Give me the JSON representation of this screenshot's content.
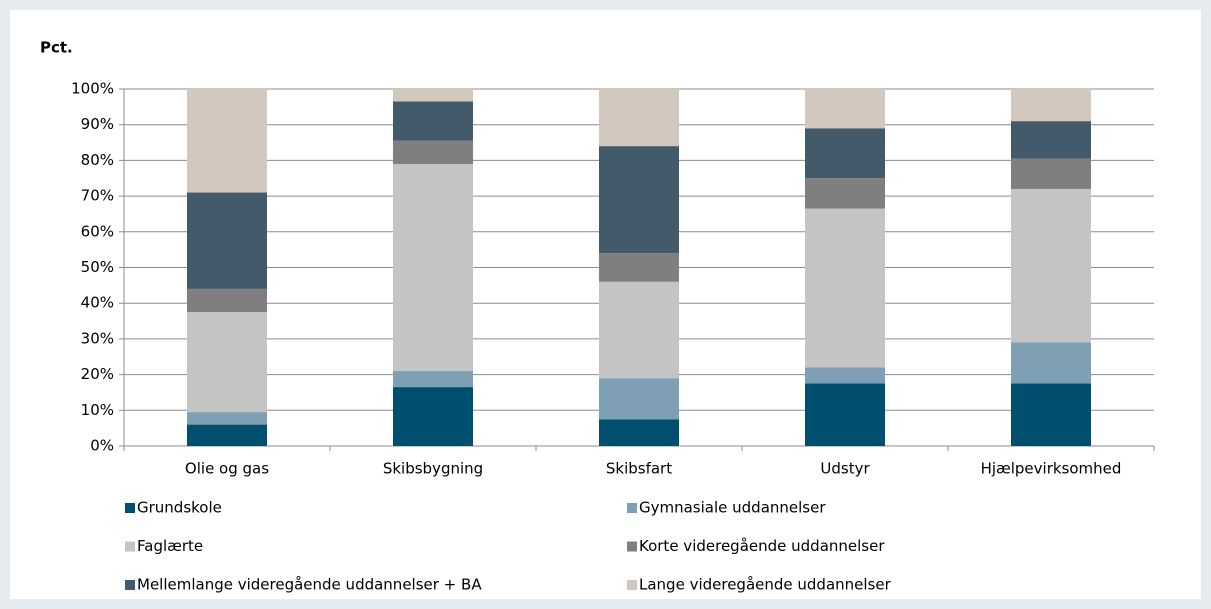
{
  "chart_data": {
    "type": "stacked_bar",
    "ylabel": "Pct.",
    "categories": [
      "Olie og gas",
      "Skibsbygning",
      "Skibsfart",
      "Udstyr",
      "Hjælpevirksomhed"
    ],
    "series": [
      {
        "name": "Grundskole",
        "color": "#004f6e",
        "values": [
          6,
          16.5,
          7.5,
          17.5,
          17.5
        ]
      },
      {
        "name": "Gymnasiale uddannelser",
        "color": "#7f9fb5",
        "values": [
          3.5,
          4.5,
          11.5,
          4.5,
          11.5
        ]
      },
      {
        "name": "Faglærte",
        "color": "#c4c4c4",
        "values": [
          28,
          58,
          27,
          44.5,
          43
        ]
      },
      {
        "name": "Korte videregående uddannelser",
        "color": "#7f7f7f",
        "values": [
          6.5,
          6.5,
          8,
          8.5,
          8.5
        ]
      },
      {
        "name": "Mellemlange videregående uddannelser + BA",
        "color": "#435a6b",
        "values": [
          27,
          11,
          30,
          14,
          10.5
        ]
      },
      {
        "name": "Lange videregående uddannelser",
        "color": "#d3c8bd",
        "values": [
          29,
          3.5,
          16,
          11,
          9
        ]
      }
    ],
    "ylim": [
      0,
      100
    ],
    "yticks": [
      {
        "value": 0,
        "label": "0%"
      },
      {
        "value": 10,
        "label": "10%"
      },
      {
        "value": 20,
        "label": "20%"
      },
      {
        "value": 30,
        "label": "30%"
      },
      {
        "value": 40,
        "label": "40%"
      },
      {
        "value": 50,
        "label": "50%"
      },
      {
        "value": 60,
        "label": "60%"
      },
      {
        "value": 70,
        "label": "70%"
      },
      {
        "value": 80,
        "label": "80%"
      },
      {
        "value": 90,
        "label": "90%"
      },
      {
        "value": 100,
        "label": "100%"
      }
    ],
    "grid": true
  }
}
